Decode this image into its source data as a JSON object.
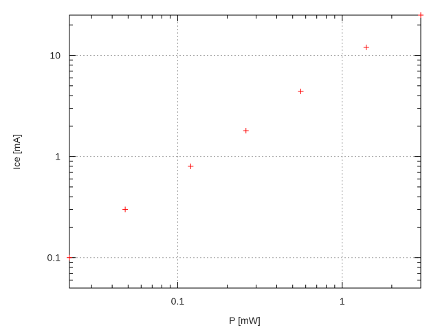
{
  "chart_data": {
    "type": "scatter",
    "title": "",
    "xlabel": "P [mW]",
    "ylabel": "Ice [mA]",
    "xscale": "log",
    "yscale": "log",
    "xlim": [
      0.022,
      3
    ],
    "ylim": [
      0.05,
      25
    ],
    "grid": true,
    "marker": "plus",
    "color": "#ff0000",
    "x_ticks": [
      {
        "value": 0.1,
        "label": "0.1"
      },
      {
        "value": 1,
        "label": "1"
      }
    ],
    "y_ticks": [
      {
        "value": 0.1,
        "label": "0.1"
      },
      {
        "value": 1,
        "label": "1"
      },
      {
        "value": 10,
        "label": "10"
      }
    ],
    "points": [
      {
        "x": 0.022,
        "y": 0.1
      },
      {
        "x": 0.048,
        "y": 0.3
      },
      {
        "x": 0.12,
        "y": 0.8
      },
      {
        "x": 0.26,
        "y": 1.8
      },
      {
        "x": 0.56,
        "y": 4.4
      },
      {
        "x": 1.4,
        "y": 12
      },
      {
        "x": 3,
        "y": 25
      }
    ]
  }
}
